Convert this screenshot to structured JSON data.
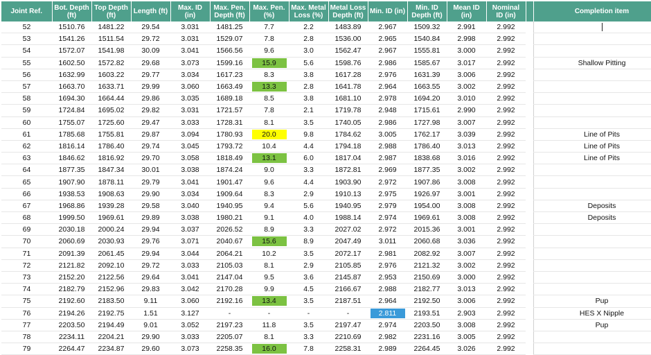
{
  "table": {
    "headers": [
      "Joint Ref.",
      "Bot. Depth (ft)",
      "Top Depth (ft)",
      "Length (ft)",
      "Max. ID (in)",
      "Max. Pen. Depth (ft)",
      "Max. Pen. (%)",
      "Max. Metal Loss (%)",
      "Metal Loss Depth (ft)",
      "Min. ID (in)",
      "Min. ID Depth (ft)",
      "Mean ID (in)",
      "Nominal ID (in)",
      "Completion item"
    ],
    "colors": {
      "header_bg": "#4fa08c",
      "green": "#7cc242",
      "yellow": "#ffff00",
      "blue": "#3a9ad9"
    },
    "rows": [
      {
        "joint": "52",
        "bot": "1510.76",
        "top": "1481.22",
        "len": "29.54",
        "maxid": "3.031",
        "pend": "1481.25",
        "pen": "7.7",
        "ml": "2.2",
        "mld": "1483.89",
        "minid": "2.967",
        "minidd": "1509.32",
        "mean": "2.991",
        "nom": "2.992",
        "item": "",
        "pen_hl": "",
        "minid_hl": ""
      },
      {
        "joint": "53",
        "bot": "1541.26",
        "top": "1511.54",
        "len": "29.72",
        "maxid": "3.031",
        "pend": "1529.07",
        "pen": "7.8",
        "ml": "2.8",
        "mld": "1536.00",
        "minid": "2.965",
        "minidd": "1540.84",
        "mean": "2.998",
        "nom": "2.992",
        "item": "",
        "pen_hl": "",
        "minid_hl": ""
      },
      {
        "joint": "54",
        "bot": "1572.07",
        "top": "1541.98",
        "len": "30.09",
        "maxid": "3.041",
        "pend": "1566.56",
        "pen": "9.6",
        "ml": "3.0",
        "mld": "1562.47",
        "minid": "2.967",
        "minidd": "1555.81",
        "mean": "3.000",
        "nom": "2.992",
        "item": "",
        "pen_hl": "",
        "minid_hl": ""
      },
      {
        "joint": "55",
        "bot": "1602.50",
        "top": "1572.82",
        "len": "29.68",
        "maxid": "3.073",
        "pend": "1599.16",
        "pen": "15.9",
        "ml": "5.6",
        "mld": "1598.76",
        "minid": "2.986",
        "minidd": "1585.67",
        "mean": "3.017",
        "nom": "2.992",
        "item": "Shallow Pitting",
        "pen_hl": "green",
        "minid_hl": ""
      },
      {
        "joint": "56",
        "bot": "1632.99",
        "top": "1603.22",
        "len": "29.77",
        "maxid": "3.034",
        "pend": "1617.23",
        "pen": "8.3",
        "ml": "3.8",
        "mld": "1617.28",
        "minid": "2.976",
        "minidd": "1631.39",
        "mean": "3.006",
        "nom": "2.992",
        "item": "",
        "pen_hl": "",
        "minid_hl": ""
      },
      {
        "joint": "57",
        "bot": "1663.70",
        "top": "1633.71",
        "len": "29.99",
        "maxid": "3.060",
        "pend": "1663.49",
        "pen": "13.3",
        "ml": "2.8",
        "mld": "1641.78",
        "minid": "2.964",
        "minidd": "1663.55",
        "mean": "3.002",
        "nom": "2.992",
        "item": "",
        "pen_hl": "green",
        "minid_hl": ""
      },
      {
        "joint": "58",
        "bot": "1694.30",
        "top": "1664.44",
        "len": "29.86",
        "maxid": "3.035",
        "pend": "1689.18",
        "pen": "8.5",
        "ml": "3.8",
        "mld": "1681.10",
        "minid": "2.978",
        "minidd": "1694.20",
        "mean": "3.010",
        "nom": "2.992",
        "item": "",
        "pen_hl": "",
        "minid_hl": ""
      },
      {
        "joint": "59",
        "bot": "1724.84",
        "top": "1695.02",
        "len": "29.82",
        "maxid": "3.031",
        "pend": "1721.57",
        "pen": "7.8",
        "ml": "2.1",
        "mld": "1719.78",
        "minid": "2.948",
        "minidd": "1715.61",
        "mean": "2.990",
        "nom": "2.992",
        "item": "",
        "pen_hl": "",
        "minid_hl": ""
      },
      {
        "joint": "60",
        "bot": "1755.07",
        "top": "1725.60",
        "len": "29.47",
        "maxid": "3.033",
        "pend": "1728.31",
        "pen": "8.1",
        "ml": "3.5",
        "mld": "1740.05",
        "minid": "2.986",
        "minidd": "1727.98",
        "mean": "3.007",
        "nom": "2.992",
        "item": "",
        "pen_hl": "",
        "minid_hl": ""
      },
      {
        "joint": "61",
        "bot": "1785.68",
        "top": "1755.81",
        "len": "29.87",
        "maxid": "3.094",
        "pend": "1780.93",
        "pen": "20.0",
        "ml": "9.8",
        "mld": "1784.62",
        "minid": "3.005",
        "minidd": "1762.17",
        "mean": "3.039",
        "nom": "2.992",
        "item": "Line of Pits",
        "pen_hl": "yellow",
        "minid_hl": ""
      },
      {
        "joint": "62",
        "bot": "1816.14",
        "top": "1786.40",
        "len": "29.74",
        "maxid": "3.045",
        "pend": "1793.72",
        "pen": "10.4",
        "ml": "4.4",
        "mld": "1794.18",
        "minid": "2.988",
        "minidd": "1786.40",
        "mean": "3.013",
        "nom": "2.992",
        "item": "Line of Pits",
        "pen_hl": "",
        "minid_hl": ""
      },
      {
        "joint": "63",
        "bot": "1846.62",
        "top": "1816.92",
        "len": "29.70",
        "maxid": "3.058",
        "pend": "1818.49",
        "pen": "13.1",
        "ml": "6.0",
        "mld": "1817.04",
        "minid": "2.987",
        "minidd": "1838.68",
        "mean": "3.016",
        "nom": "2.992",
        "item": "Line of Pits",
        "pen_hl": "green",
        "minid_hl": ""
      },
      {
        "joint": "64",
        "bot": "1877.35",
        "top": "1847.34",
        "len": "30.01",
        "maxid": "3.038",
        "pend": "1874.24",
        "pen": "9.0",
        "ml": "3.3",
        "mld": "1872.81",
        "minid": "2.969",
        "minidd": "1877.35",
        "mean": "3.002",
        "nom": "2.992",
        "item": "",
        "pen_hl": "",
        "minid_hl": ""
      },
      {
        "joint": "65",
        "bot": "1907.90",
        "top": "1878.11",
        "len": "29.79",
        "maxid": "3.041",
        "pend": "1901.47",
        "pen": "9.6",
        "ml": "4.4",
        "mld": "1903.90",
        "minid": "2.972",
        "minidd": "1907.86",
        "mean": "3.008",
        "nom": "2.992",
        "item": "",
        "pen_hl": "",
        "minid_hl": ""
      },
      {
        "joint": "66",
        "bot": "1938.53",
        "top": "1908.63",
        "len": "29.90",
        "maxid": "3.034",
        "pend": "1909.64",
        "pen": "8.3",
        "ml": "2.9",
        "mld": "1910.13",
        "minid": "2.975",
        "minidd": "1926.97",
        "mean": "3.001",
        "nom": "2.992",
        "item": "",
        "pen_hl": "",
        "minid_hl": ""
      },
      {
        "joint": "67",
        "bot": "1968.86",
        "top": "1939.28",
        "len": "29.58",
        "maxid": "3.040",
        "pend": "1940.95",
        "pen": "9.4",
        "ml": "5.6",
        "mld": "1940.95",
        "minid": "2.979",
        "minidd": "1954.00",
        "mean": "3.008",
        "nom": "2.992",
        "item": "Deposits",
        "pen_hl": "",
        "minid_hl": ""
      },
      {
        "joint": "68",
        "bot": "1999.50",
        "top": "1969.61",
        "len": "29.89",
        "maxid": "3.038",
        "pend": "1980.21",
        "pen": "9.1",
        "ml": "4.0",
        "mld": "1988.14",
        "minid": "2.974",
        "minidd": "1969.61",
        "mean": "3.008",
        "nom": "2.992",
        "item": "Deposits",
        "pen_hl": "",
        "minid_hl": ""
      },
      {
        "joint": "69",
        "bot": "2030.18",
        "top": "2000.24",
        "len": "29.94",
        "maxid": "3.037",
        "pend": "2026.52",
        "pen": "8.9",
        "ml": "3.3",
        "mld": "2027.02",
        "minid": "2.972",
        "minidd": "2015.36",
        "mean": "3.001",
        "nom": "2.992",
        "item": "",
        "pen_hl": "",
        "minid_hl": ""
      },
      {
        "joint": "70",
        "bot": "2060.69",
        "top": "2030.93",
        "len": "29.76",
        "maxid": "3.071",
        "pend": "2040.67",
        "pen": "15.6",
        "ml": "8.9",
        "mld": "2047.49",
        "minid": "3.011",
        "minidd": "2060.68",
        "mean": "3.036",
        "nom": "2.992",
        "item": "",
        "pen_hl": "green",
        "minid_hl": ""
      },
      {
        "joint": "71",
        "bot": "2091.39",
        "top": "2061.45",
        "len": "29.94",
        "maxid": "3.044",
        "pend": "2064.21",
        "pen": "10.2",
        "ml": "3.5",
        "mld": "2072.17",
        "minid": "2.981",
        "minidd": "2082.92",
        "mean": "3.007",
        "nom": "2.992",
        "item": "",
        "pen_hl": "",
        "minid_hl": ""
      },
      {
        "joint": "72",
        "bot": "2121.82",
        "top": "2092.10",
        "len": "29.72",
        "maxid": "3.033",
        "pend": "2105.03",
        "pen": "8.1",
        "ml": "2.9",
        "mld": "2105.85",
        "minid": "2.976",
        "minidd": "2121.32",
        "mean": "3.002",
        "nom": "2.992",
        "item": "",
        "pen_hl": "",
        "minid_hl": ""
      },
      {
        "joint": "73",
        "bot": "2152.20",
        "top": "2122.56",
        "len": "29.64",
        "maxid": "3.041",
        "pend": "2147.04",
        "pen": "9.5",
        "ml": "3.6",
        "mld": "2145.87",
        "minid": "2.953",
        "minidd": "2150.69",
        "mean": "3.000",
        "nom": "2.992",
        "item": "",
        "pen_hl": "",
        "minid_hl": ""
      },
      {
        "joint": "74",
        "bot": "2182.79",
        "top": "2152.96",
        "len": "29.83",
        "maxid": "3.042",
        "pend": "2170.28",
        "pen": "9.9",
        "ml": "4.5",
        "mld": "2166.67",
        "minid": "2.988",
        "minidd": "2182.77",
        "mean": "3.013",
        "nom": "2.992",
        "item": "",
        "pen_hl": "",
        "minid_hl": ""
      },
      {
        "joint": "75",
        "bot": "2192.60",
        "top": "2183.50",
        "len": "9.11",
        "maxid": "3.060",
        "pend": "2192.16",
        "pen": "13.4",
        "ml": "3.5",
        "mld": "2187.51",
        "minid": "2.964",
        "minidd": "2192.50",
        "mean": "3.006",
        "nom": "2.992",
        "item": "Pup",
        "pen_hl": "green",
        "minid_hl": ""
      },
      {
        "joint": "76",
        "bot": "2194.26",
        "top": "2192.75",
        "len": "1.51",
        "maxid": "3.127",
        "pend": "-",
        "pen": "-",
        "ml": "-",
        "mld": "-",
        "minid": "2.811",
        "minidd": "2193.51",
        "mean": "2.903",
        "nom": "2.992",
        "item": "HES X Nipple",
        "pen_hl": "",
        "minid_hl": "blue"
      },
      {
        "joint": "77",
        "bot": "2203.50",
        "top": "2194.49",
        "len": "9.01",
        "maxid": "3.052",
        "pend": "2197.23",
        "pen": "11.8",
        "ml": "3.5",
        "mld": "2197.47",
        "minid": "2.974",
        "minidd": "2203.50",
        "mean": "3.008",
        "nom": "2.992",
        "item": "Pup",
        "pen_hl": "",
        "minid_hl": ""
      },
      {
        "joint": "78",
        "bot": "2234.11",
        "top": "2204.21",
        "len": "29.90",
        "maxid": "3.033",
        "pend": "2205.07",
        "pen": "8.1",
        "ml": "3.3",
        "mld": "2210.69",
        "minid": "2.982",
        "minidd": "2231.16",
        "mean": "3.005",
        "nom": "2.992",
        "item": "",
        "pen_hl": "",
        "minid_hl": ""
      },
      {
        "joint": "79",
        "bot": "2264.47",
        "top": "2234.87",
        "len": "29.60",
        "maxid": "3.073",
        "pend": "2258.35",
        "pen": "16.0",
        "ml": "7.8",
        "mld": "2258.31",
        "minid": "2.989",
        "minidd": "2264.45",
        "mean": "3.026",
        "nom": "2.992",
        "item": "",
        "pen_hl": "green",
        "minid_hl": ""
      }
    ]
  }
}
